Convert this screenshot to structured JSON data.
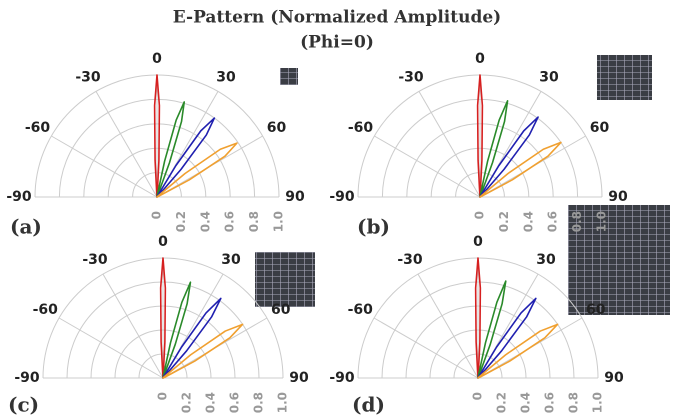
{
  "chart_data": [
    {
      "type": "polar",
      "title": "E-Pattern (Normalized Amplitude)",
      "subtitle": "(Phi=0)",
      "panel_label": "(a)",
      "thetalim": [
        -90,
        90
      ],
      "thetaticks": [
        -90,
        -60,
        -30,
        0,
        30,
        60,
        90
      ],
      "rlim": [
        0,
        1
      ],
      "rticks": [
        0,
        0.2,
        0.4,
        0.6,
        0.8,
        {
          "value": 1,
          "label": "1.0"
        }
      ],
      "series": [
        {
          "color": "#d62020",
          "theta": [
            -5,
            -3,
            -1.5,
            0,
            1.5,
            3,
            5
          ],
          "values": [
            0.02,
            0.3,
            0.75,
            1,
            0.75,
            0.3,
            0.02
          ]
        },
        {
          "color": "#2a8a2a",
          "theta": [
            10,
            12,
            14,
            16,
            18,
            20,
            22
          ],
          "values": [
            0.02,
            0.3,
            0.65,
            0.81,
            0.65,
            0.3,
            0.02
          ]
        },
        {
          "color": "#2020b0",
          "theta": [
            29,
            31,
            33.5,
            36,
            38.5,
            41,
            43
          ],
          "values": [
            0.02,
            0.3,
            0.65,
            0.8,
            0.65,
            0.3,
            0.02
          ]
        },
        {
          "color": "#f0a030",
          "theta": [
            47,
            50,
            53,
            56,
            59,
            62,
            65
          ],
          "values": [
            0.02,
            0.3,
            0.65,
            0.79,
            0.65,
            0.3,
            0.02
          ]
        }
      ]
    },
    {
      "type": "polar",
      "panel_label": "(b)",
      "thetalim": [
        -90,
        90
      ],
      "thetaticks": [
        -90,
        -60,
        -30,
        0,
        30,
        60,
        90
      ],
      "rlim": [
        0,
        1
      ],
      "rticks": [
        0,
        0.2,
        0.4,
        0.6,
        0.8,
        {
          "value": 1,
          "label": "1.0"
        }
      ],
      "series": [
        {
          "color": "#d62020",
          "theta": [
            -5,
            -3,
            -1.5,
            0,
            1.5,
            3,
            5
          ],
          "values": [
            0.02,
            0.3,
            0.75,
            1,
            0.75,
            0.3,
            0.02
          ]
        },
        {
          "color": "#2a8a2a",
          "theta": [
            10,
            12,
            14,
            16,
            18,
            20,
            22
          ],
          "values": [
            0.02,
            0.3,
            0.65,
            0.82,
            0.65,
            0.3,
            0.02
          ]
        },
        {
          "color": "#2020b0",
          "theta": [
            29,
            31,
            33.5,
            36,
            38.5,
            41,
            43
          ],
          "values": [
            0.02,
            0.3,
            0.65,
            0.81,
            0.65,
            0.3,
            0.02
          ]
        },
        {
          "color": "#f0a030",
          "theta": [
            47,
            50,
            53,
            56,
            59,
            62,
            65
          ],
          "values": [
            0.02,
            0.3,
            0.65,
            0.8,
            0.65,
            0.3,
            0.02
          ]
        }
      ]
    },
    {
      "type": "polar",
      "panel_label": "(c)",
      "thetalim": [
        -90,
        90
      ],
      "thetaticks": [
        -90,
        -60,
        -30,
        0,
        30,
        60,
        90
      ],
      "rlim": [
        0,
        1
      ],
      "rticks": [
        0,
        0.2,
        0.4,
        0.6,
        0.8,
        {
          "value": 1,
          "label": "1.0"
        }
      ],
      "series": [
        {
          "color": "#d62020",
          "theta": [
            -5,
            -3,
            -1.5,
            0,
            1.5,
            3,
            5
          ],
          "values": [
            0.02,
            0.3,
            0.75,
            1,
            0.75,
            0.3,
            0.02
          ]
        },
        {
          "color": "#2a8a2a",
          "theta": [
            10,
            12,
            14,
            16,
            18,
            20,
            22
          ],
          "values": [
            0.02,
            0.3,
            0.65,
            0.83,
            0.65,
            0.3,
            0.02
          ]
        },
        {
          "color": "#2020b0",
          "theta": [
            29,
            31,
            33.5,
            36,
            38.5,
            41,
            43
          ],
          "values": [
            0.02,
            0.3,
            0.65,
            0.82,
            0.65,
            0.3,
            0.02
          ]
        },
        {
          "color": "#f0a030",
          "theta": [
            47,
            50,
            53,
            56,
            59,
            62,
            65
          ],
          "values": [
            0.02,
            0.3,
            0.65,
            0.8,
            0.65,
            0.3,
            0.02
          ]
        }
      ]
    },
    {
      "type": "polar",
      "panel_label": "(d)",
      "thetalim": [
        -90,
        90
      ],
      "thetaticks": [
        -90,
        -60,
        -30,
        0,
        30,
        60,
        90
      ],
      "rlim": [
        0,
        1
      ],
      "rticks": [
        0,
        0.2,
        0.4,
        0.6,
        0.8,
        {
          "value": 1,
          "label": "1.0"
        }
      ],
      "series": [
        {
          "color": "#d62020",
          "theta": [
            -5,
            -3,
            -1.5,
            0,
            1.5,
            3,
            5
          ],
          "values": [
            0.02,
            0.3,
            0.75,
            1,
            0.75,
            0.3,
            0.02
          ]
        },
        {
          "color": "#2a8a2a",
          "theta": [
            10,
            12,
            14,
            16,
            18,
            20,
            22
          ],
          "values": [
            0.02,
            0.3,
            0.65,
            0.84,
            0.65,
            0.3,
            0.02
          ]
        },
        {
          "color": "#2020b0",
          "theta": [
            29,
            31,
            33.5,
            36,
            38.5,
            41,
            43
          ],
          "values": [
            0.02,
            0.3,
            0.65,
            0.82,
            0.65,
            0.3,
            0.02
          ]
        },
        {
          "color": "#f0a030",
          "theta": [
            47,
            50,
            53,
            56,
            59,
            62,
            65
          ],
          "values": [
            0.02,
            0.3,
            0.65,
            0.8,
            0.65,
            0.3,
            0.02
          ]
        }
      ]
    }
  ]
}
